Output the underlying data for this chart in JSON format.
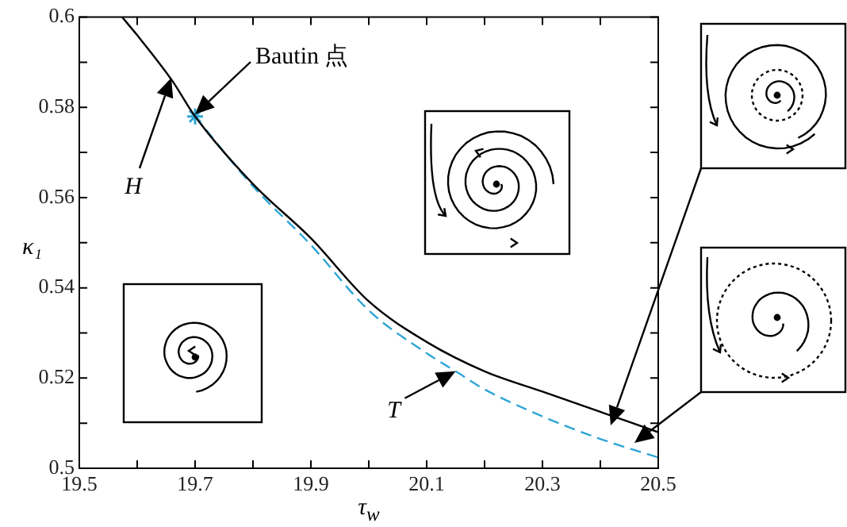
{
  "chart_data": {
    "type": "line",
    "xlabel": "τ$_{w}$",
    "ylabel": "κ₁",
    "xlim": [
      19.5,
      20.5
    ],
    "ylim": [
      0.5,
      0.6
    ],
    "xticks": [
      19.5,
      {
        "value": 19.6,
        "label": null
      },
      19.7,
      {
        "value": 19.8,
        "label": null
      },
      19.9,
      {
        "value": 20.0,
        "label": null
      },
      20.1,
      {
        "value": 20.2,
        "label": null
      },
      20.3,
      {
        "value": 20.4,
        "label": null
      },
      20.5
    ],
    "yticks": [
      0.5,
      {
        "value": 0.51,
        "label": null
      },
      0.52,
      {
        "value": 0.53,
        "label": null
      },
      0.54,
      {
        "value": 0.55,
        "label": null
      },
      0.56,
      {
        "value": 0.57,
        "label": null
      },
      0.58,
      {
        "value": 0.59,
        "label": null
      },
      0.6
    ],
    "legend": false,
    "annotations": [
      "H",
      {
        "text": "T",
        "x": 20.15,
        "y": 0.5215
      },
      "Bautin 点"
    ],
    "series": [
      {
        "color": "#000000",
        "line_style": "solid",
        "marker": "none",
        "x": [
          19.574,
          19.6,
          19.66,
          19.7,
          19.8,
          19.9,
          20.0,
          20.1,
          20.2,
          20.3,
          20.4,
          20.5
        ],
        "values": [
          0.6,
          0.596,
          0.586,
          0.578,
          0.563,
          0.551,
          0.537,
          0.528,
          0.5215,
          0.517,
          0.5125,
          0.508
        ]
      },
      {
        "color": "#2ea6d6",
        "line_style": "dashed",
        "marker": "none",
        "x": [
          19.7,
          19.8,
          19.9,
          20.0,
          20.1,
          20.15,
          20.2,
          20.3,
          20.4,
          20.5
        ],
        "values": [
          0.578,
          0.5625,
          0.5495,
          0.535,
          0.5255,
          0.5215,
          0.5175,
          0.5115,
          0.5065,
          0.5024
        ]
      },
      {
        "type": "scatter",
        "color": "#2ea6d6",
        "marker": "cross",
        "x": [
          19.7
        ],
        "values": [
          0.578
        ]
      }
    ]
  }
}
